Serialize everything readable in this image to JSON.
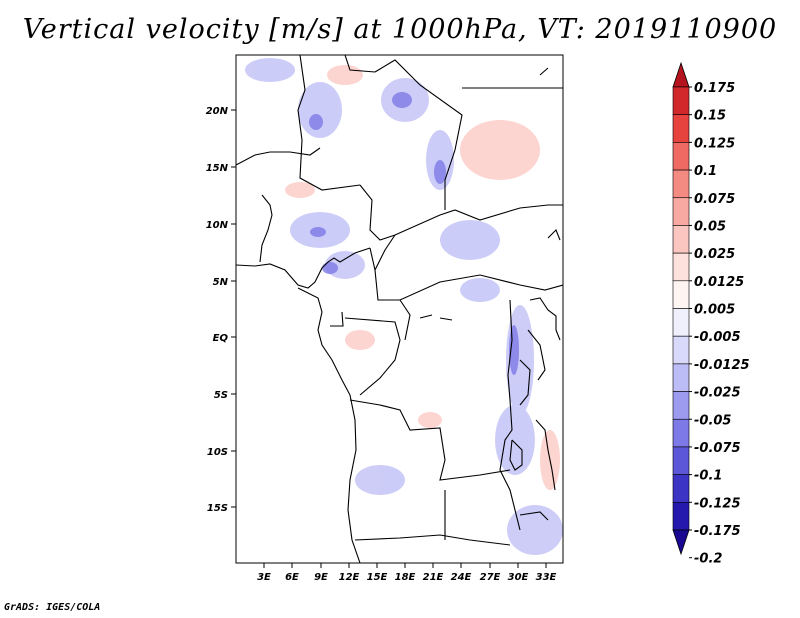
{
  "title": "Vertical velocity [m/s] at 1000hPa, VT: 2019110900",
  "credit": "GrADS: IGES/COLA",
  "map": {
    "lat_ticks": [
      "20N",
      "15N",
      "10N",
      "5N",
      "EQ",
      "5S",
      "10S",
      "15S"
    ],
    "lon_ticks": [
      "3E",
      "6E",
      "9E",
      "12E",
      "15E",
      "18E",
      "21E",
      "24E",
      "27E",
      "30E",
      "33E"
    ],
    "lon_range": [
      0.5,
      34.5
    ],
    "lat_range": [
      -20,
      24.5
    ],
    "variable": "vertical velocity",
    "level": "1000hPa",
    "units": "m/s"
  },
  "colorbar": {
    "labels": [
      "0.175",
      "0.15",
      "0.125",
      "0.1",
      "0.075",
      "0.05",
      "0.025",
      "0.0125",
      "0.005",
      "-0.005",
      "-0.0125",
      "-0.025",
      "-0.05",
      "-0.075",
      "-0.1",
      "-0.125",
      "-0.175",
      "-0.2"
    ],
    "colors": [
      "#b4141e",
      "#d3282b",
      "#e6433f",
      "#ee6a62",
      "#f48b83",
      "#f8aaa2",
      "#fbc6c0",
      "#fde1dc",
      "#fef4f2",
      "#f0f0fd",
      "#d9d9fb",
      "#bcbcf6",
      "#9d9bf0",
      "#7d79e6",
      "#5c57d8",
      "#3c34c5",
      "#2519ad",
      "#180892"
    ]
  }
}
